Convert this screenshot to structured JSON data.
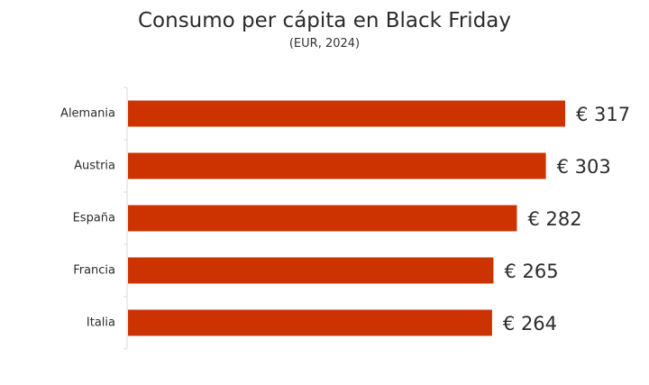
{
  "chart_data": {
    "type": "bar",
    "orientation": "horizontal",
    "title": "Consumo per cápita en Black Friday",
    "subtitle": "(EUR, 2024)",
    "categories": [
      "Alemania",
      "Austria",
      "España",
      "Francia",
      "Italia"
    ],
    "values": [
      317,
      303,
      282,
      265,
      264
    ],
    "value_labels": [
      "€ 317",
      "€ 303",
      "€ 282",
      "€ 265",
      "€ 264"
    ],
    "xlim": [
      0,
      317
    ],
    "grid": false,
    "legend": "none",
    "bar_color": "#cc3300"
  }
}
